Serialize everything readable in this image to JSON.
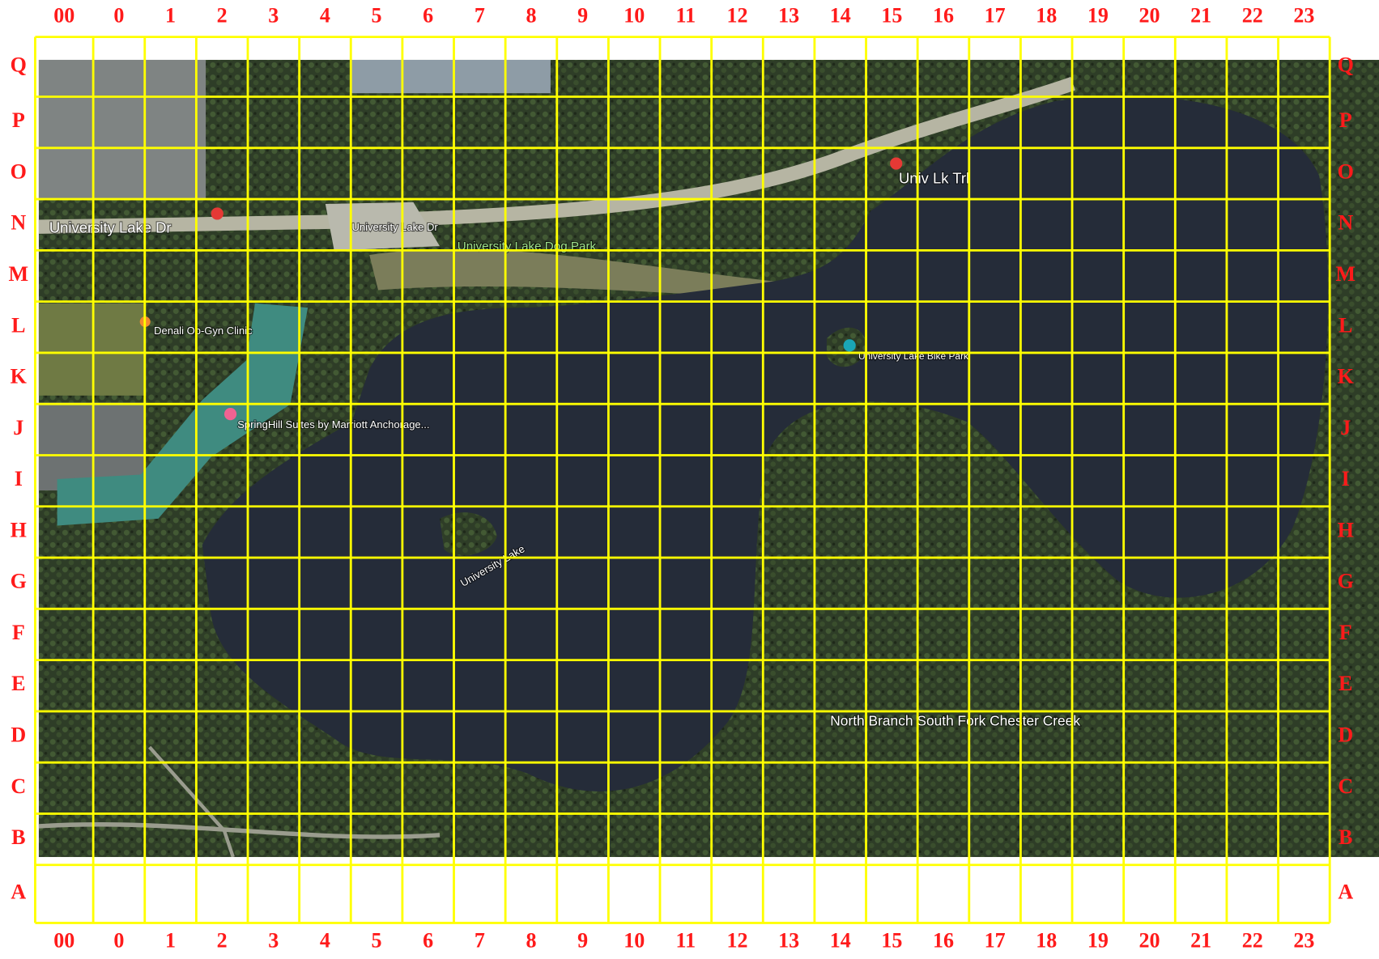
{
  "columns": [
    "00",
    "0",
    "1",
    "2",
    "3",
    "4",
    "5",
    "6",
    "7",
    "8",
    "9",
    "10",
    "11",
    "12",
    "13",
    "14",
    "15",
    "16",
    "17",
    "18",
    "19",
    "20",
    "21",
    "22",
    "23"
  ],
  "rows": [
    "Q",
    "P",
    "O",
    "N",
    "M",
    "L",
    "K",
    "J",
    "I",
    "H",
    "G",
    "F",
    "E",
    "D",
    "C",
    "B",
    "A"
  ],
  "map_labels": [
    {
      "text": "University Lake Dr"
    },
    {
      "text": "University Lake Dr"
    },
    {
      "text": "University Lake Dog Park"
    },
    {
      "text": "Univ Lk Trl"
    },
    {
      "text": "Denali Ob-Gyn Clinic"
    },
    {
      "text": "SpringHill Suites by Marriott Anchorage..."
    },
    {
      "text": "University Lake"
    },
    {
      "text": "University Lake Bike Park"
    },
    {
      "text": "North Branch South Fork Chester Creek"
    }
  ]
}
